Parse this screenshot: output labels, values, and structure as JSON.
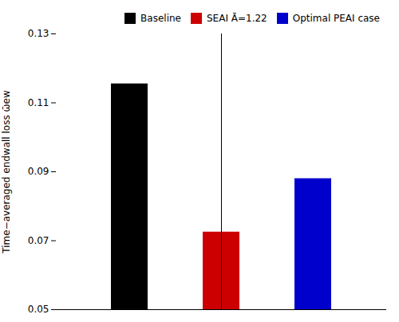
{
  "chart_data": {
    "type": "bar",
    "categories": [
      "Baseline",
      "SEAI   Ā=1.22",
      "Optimal PEAI case"
    ],
    "values": [
      0.1155,
      0.0725,
      0.088
    ],
    "colors": [
      "#000000",
      "#cc0000",
      "#0000cc"
    ],
    "ylim": [
      0.05,
      0.13
    ],
    "yticks": [
      0.05,
      0.07,
      0.09,
      0.11,
      0.13
    ],
    "ylabel": "Time−averaged endwall loss ω̄ew",
    "legend": "upper right",
    "tick_labels": "y"
  }
}
